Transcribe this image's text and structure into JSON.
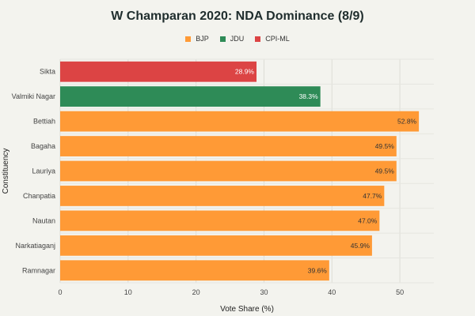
{
  "chart_data": {
    "type": "bar",
    "orientation": "horizontal",
    "title": "W Champaran 2020: NDA Dominance (8/9)",
    "xlabel": "Vote Share (%)",
    "ylabel": "Constituency",
    "xlim": [
      0,
      55
    ],
    "xticks": [
      0,
      10,
      20,
      30,
      40,
      50
    ],
    "grid": true,
    "legend_position": "top-center",
    "legend": [
      {
        "name": "BJP",
        "color": "#ff9a36"
      },
      {
        "name": "JDU",
        "color": "#2e8b57"
      },
      {
        "name": "CPI-ML",
        "color": "#dc4444"
      }
    ],
    "bars": [
      {
        "category": "Sikta",
        "value": 28.9,
        "party": "CPI-ML",
        "label": "28.9%"
      },
      {
        "category": "Valmiki Nagar",
        "value": 38.3,
        "party": "JDU",
        "label": "38.3%"
      },
      {
        "category": "Bettiah",
        "value": 52.8,
        "party": "BJP",
        "label": "52.8%"
      },
      {
        "category": "Bagaha",
        "value": 49.5,
        "party": "BJP",
        "label": "49.5%"
      },
      {
        "category": "Lauriya",
        "value": 49.5,
        "party": "BJP",
        "label": "49.5%"
      },
      {
        "category": "Chanpatia",
        "value": 47.7,
        "party": "BJP",
        "label": "47.7%"
      },
      {
        "category": "Nautan",
        "value": 47.0,
        "party": "BJP",
        "label": "47.0%"
      },
      {
        "category": "Narkatiaganj",
        "value": 45.9,
        "party": "BJP",
        "label": "45.9%"
      },
      {
        "category": "Ramnagar",
        "value": 39.6,
        "party": "BJP",
        "label": "39.6%"
      }
    ]
  }
}
